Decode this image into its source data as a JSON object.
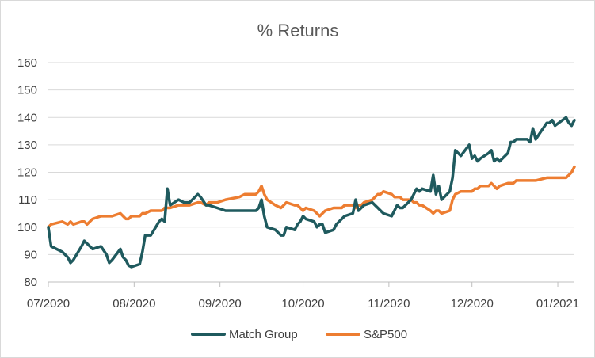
{
  "chart_data": {
    "type": "line",
    "title": "% Returns",
    "xlabel": "",
    "ylabel": "",
    "ylim": [
      80,
      160
    ],
    "yticks": [
      80,
      90,
      100,
      110,
      120,
      130,
      140,
      150,
      160
    ],
    "grid": true,
    "legend": "bottom",
    "colors": {
      "match_group": "#1f5a5e",
      "sp500": "#ed7d31",
      "grid": "#d9d9d9",
      "axis": "#bfbfbf"
    },
    "x_range": [
      "2020-07-01",
      "2021-01-07"
    ],
    "x_ticks": [
      {
        "label": "07/2020",
        "date": "2020-07-01"
      },
      {
        "label": "08/2020",
        "date": "2020-08-01"
      },
      {
        "label": "09/2020",
        "date": "2020-09-01"
      },
      {
        "label": "10/2020",
        "date": "2020-10-01"
      },
      {
        "label": "11/2020",
        "date": "2020-11-01"
      },
      {
        "label": "12/2020",
        "date": "2020-12-01"
      },
      {
        "label": "01/2021",
        "date": "2021-01-01"
      }
    ],
    "series": [
      {
        "name": "Match Group",
        "color": "#1f5a5e",
        "points": [
          [
            "2020-07-01",
            100
          ],
          [
            "2020-07-02",
            93
          ],
          [
            "2020-07-06",
            91
          ],
          [
            "2020-07-08",
            89
          ],
          [
            "2020-07-09",
            87
          ],
          [
            "2020-07-10",
            88
          ],
          [
            "2020-07-13",
            93
          ],
          [
            "2020-07-14",
            95
          ],
          [
            "2020-07-15",
            94
          ],
          [
            "2020-07-17",
            92
          ],
          [
            "2020-07-20",
            93
          ],
          [
            "2020-07-22",
            90
          ],
          [
            "2020-07-23",
            87
          ],
          [
            "2020-07-24",
            88
          ],
          [
            "2020-07-27",
            92
          ],
          [
            "2020-07-28",
            89
          ],
          [
            "2020-07-29",
            88
          ],
          [
            "2020-07-30",
            86
          ],
          [
            "2020-07-31",
            85.5
          ],
          [
            "2020-08-03",
            86.5
          ],
          [
            "2020-08-04",
            91
          ],
          [
            "2020-08-05",
            97
          ],
          [
            "2020-08-07",
            97
          ],
          [
            "2020-08-10",
            102
          ],
          [
            "2020-08-11",
            103
          ],
          [
            "2020-08-12",
            102
          ],
          [
            "2020-08-13",
            114
          ],
          [
            "2020-08-14",
            108
          ],
          [
            "2020-08-17",
            110
          ],
          [
            "2020-08-19",
            109
          ],
          [
            "2020-08-21",
            109
          ],
          [
            "2020-08-24",
            112
          ],
          [
            "2020-08-25",
            111
          ],
          [
            "2020-08-27",
            108
          ],
          [
            "2020-08-28",
            108
          ],
          [
            "2020-08-31",
            107
          ],
          [
            "2020-09-03",
            106
          ],
          [
            "2020-09-08",
            106
          ],
          [
            "2020-09-10",
            106
          ],
          [
            "2020-09-11",
            106
          ],
          [
            "2020-09-14",
            106
          ],
          [
            "2020-09-15",
            107
          ],
          [
            "2020-09-16",
            110
          ],
          [
            "2020-09-17",
            104
          ],
          [
            "2020-09-18",
            100
          ],
          [
            "2020-09-21",
            99
          ],
          [
            "2020-09-23",
            97
          ],
          [
            "2020-09-24",
            97
          ],
          [
            "2020-09-25",
            100
          ],
          [
            "2020-09-28",
            99
          ],
          [
            "2020-09-29",
            101
          ],
          [
            "2020-09-30",
            102
          ],
          [
            "2020-10-01",
            104
          ],
          [
            "2020-10-02",
            103
          ],
          [
            "2020-10-05",
            102
          ],
          [
            "2020-10-06",
            100
          ],
          [
            "2020-10-07",
            101
          ],
          [
            "2020-10-08",
            101
          ],
          [
            "2020-10-09",
            98
          ],
          [
            "2020-10-12",
            99
          ],
          [
            "2020-10-13",
            101
          ],
          [
            "2020-10-15",
            103
          ],
          [
            "2020-10-16",
            104
          ],
          [
            "2020-10-19",
            105
          ],
          [
            "2020-10-20",
            110
          ],
          [
            "2020-10-21",
            106
          ],
          [
            "2020-10-22",
            107
          ],
          [
            "2020-10-23",
            108
          ],
          [
            "2020-10-26",
            109
          ],
          [
            "2020-10-27",
            108
          ],
          [
            "2020-10-28",
            107
          ],
          [
            "2020-10-29",
            106
          ],
          [
            "2020-10-30",
            105
          ],
          [
            "2020-11-02",
            104
          ],
          [
            "2020-11-03",
            106
          ],
          [
            "2020-11-04",
            108
          ],
          [
            "2020-11-05",
            107
          ],
          [
            "2020-11-06",
            107
          ],
          [
            "2020-11-09",
            110
          ],
          [
            "2020-11-10",
            112
          ],
          [
            "2020-11-11",
            114
          ],
          [
            "2020-11-12",
            113
          ],
          [
            "2020-11-13",
            114
          ],
          [
            "2020-11-16",
            113
          ],
          [
            "2020-11-17",
            119
          ],
          [
            "2020-11-18",
            112
          ],
          [
            "2020-11-19",
            115
          ],
          [
            "2020-11-20",
            110
          ],
          [
            "2020-11-23",
            113
          ],
          [
            "2020-11-24",
            118
          ],
          [
            "2020-11-25",
            128
          ],
          [
            "2020-11-27",
            126
          ],
          [
            "2020-11-30",
            130
          ],
          [
            "2020-12-01",
            125
          ],
          [
            "2020-12-02",
            126
          ],
          [
            "2020-12-03",
            124
          ],
          [
            "2020-12-04",
            125
          ],
          [
            "2020-12-07",
            127
          ],
          [
            "2020-12-08",
            128
          ],
          [
            "2020-12-09",
            124
          ],
          [
            "2020-12-10",
            125
          ],
          [
            "2020-12-11",
            124
          ],
          [
            "2020-12-14",
            127
          ],
          [
            "2020-12-15",
            131
          ],
          [
            "2020-12-16",
            131
          ],
          [
            "2020-12-17",
            132
          ],
          [
            "2020-12-18",
            132
          ],
          [
            "2020-12-21",
            132
          ],
          [
            "2020-12-22",
            131
          ],
          [
            "2020-12-23",
            136
          ],
          [
            "2020-12-24",
            132
          ],
          [
            "2020-12-28",
            138
          ],
          [
            "2020-12-29",
            138
          ],
          [
            "2020-12-30",
            139
          ],
          [
            "2020-12-31",
            137
          ],
          [
            "2021-01-04",
            140
          ],
          [
            "2021-01-05",
            138
          ],
          [
            "2021-01-06",
            137
          ],
          [
            "2021-01-07",
            139
          ]
        ]
      },
      {
        "name": "S&P500",
        "color": "#ed7d31",
        "points": [
          [
            "2020-07-01",
            100
          ],
          [
            "2020-07-02",
            101
          ],
          [
            "2020-07-06",
            102
          ],
          [
            "2020-07-08",
            101
          ],
          [
            "2020-07-09",
            102
          ],
          [
            "2020-07-10",
            101
          ],
          [
            "2020-07-13",
            102
          ],
          [
            "2020-07-14",
            102
          ],
          [
            "2020-07-15",
            101
          ],
          [
            "2020-07-17",
            103
          ],
          [
            "2020-07-20",
            104
          ],
          [
            "2020-07-22",
            104
          ],
          [
            "2020-07-23",
            104
          ],
          [
            "2020-07-24",
            104
          ],
          [
            "2020-07-27",
            105
          ],
          [
            "2020-07-28",
            104
          ],
          [
            "2020-07-29",
            103
          ],
          [
            "2020-07-30",
            103
          ],
          [
            "2020-07-31",
            104
          ],
          [
            "2020-08-03",
            104
          ],
          [
            "2020-08-04",
            105
          ],
          [
            "2020-08-05",
            105
          ],
          [
            "2020-08-07",
            106
          ],
          [
            "2020-08-10",
            106
          ],
          [
            "2020-08-11",
            106
          ],
          [
            "2020-08-12",
            107
          ],
          [
            "2020-08-13",
            107
          ],
          [
            "2020-08-14",
            107
          ],
          [
            "2020-08-17",
            108
          ],
          [
            "2020-08-19",
            108
          ],
          [
            "2020-08-21",
            108
          ],
          [
            "2020-08-24",
            109
          ],
          [
            "2020-08-25",
            109
          ],
          [
            "2020-08-27",
            108
          ],
          [
            "2020-08-28",
            109
          ],
          [
            "2020-08-31",
            109
          ],
          [
            "2020-09-03",
            110
          ],
          [
            "2020-09-08",
            111
          ],
          [
            "2020-09-10",
            112
          ],
          [
            "2020-09-11",
            112
          ],
          [
            "2020-09-14",
            112
          ],
          [
            "2020-09-15",
            113
          ],
          [
            "2020-09-16",
            115
          ],
          [
            "2020-09-17",
            112
          ],
          [
            "2020-09-18",
            110
          ],
          [
            "2020-09-21",
            108
          ],
          [
            "2020-09-23",
            107
          ],
          [
            "2020-09-24",
            108
          ],
          [
            "2020-09-25",
            109
          ],
          [
            "2020-09-28",
            108
          ],
          [
            "2020-09-29",
            108
          ],
          [
            "2020-09-30",
            107
          ],
          [
            "2020-10-01",
            106
          ],
          [
            "2020-10-02",
            107
          ],
          [
            "2020-10-05",
            106
          ],
          [
            "2020-10-06",
            105
          ],
          [
            "2020-10-07",
            104
          ],
          [
            "2020-10-08",
            105
          ],
          [
            "2020-10-09",
            106
          ],
          [
            "2020-10-12",
            107
          ],
          [
            "2020-10-13",
            107
          ],
          [
            "2020-10-15",
            107
          ],
          [
            "2020-10-16",
            108
          ],
          [
            "2020-10-19",
            108
          ],
          [
            "2020-10-20",
            107
          ],
          [
            "2020-10-21",
            108
          ],
          [
            "2020-10-22",
            108
          ],
          [
            "2020-10-23",
            109
          ],
          [
            "2020-10-26",
            110
          ],
          [
            "2020-10-27",
            111
          ],
          [
            "2020-10-28",
            112
          ],
          [
            "2020-10-29",
            112
          ],
          [
            "2020-10-30",
            113
          ],
          [
            "2020-11-02",
            112
          ],
          [
            "2020-11-03",
            111
          ],
          [
            "2020-11-04",
            111
          ],
          [
            "2020-11-05",
            111
          ],
          [
            "2020-11-06",
            110
          ],
          [
            "2020-11-09",
            110
          ],
          [
            "2020-11-10",
            109
          ],
          [
            "2020-11-11",
            109
          ],
          [
            "2020-11-12",
            108
          ],
          [
            "2020-11-13",
            108
          ],
          [
            "2020-11-16",
            106
          ],
          [
            "2020-11-17",
            105
          ],
          [
            "2020-11-18",
            106
          ],
          [
            "2020-11-19",
            106
          ],
          [
            "2020-11-20",
            105
          ],
          [
            "2020-11-23",
            106
          ],
          [
            "2020-11-24",
            110
          ],
          [
            "2020-11-25",
            112
          ],
          [
            "2020-11-27",
            113
          ],
          [
            "2020-11-30",
            113
          ],
          [
            "2020-12-01",
            113
          ],
          [
            "2020-12-02",
            114
          ],
          [
            "2020-12-03",
            114
          ],
          [
            "2020-12-04",
            115
          ],
          [
            "2020-12-07",
            115
          ],
          [
            "2020-12-08",
            116
          ],
          [
            "2020-12-09",
            115
          ],
          [
            "2020-12-10",
            114
          ],
          [
            "2020-12-11",
            115
          ],
          [
            "2020-12-14",
            116
          ],
          [
            "2020-12-15",
            116
          ],
          [
            "2020-12-16",
            116
          ],
          [
            "2020-12-17",
            117
          ],
          [
            "2020-12-18",
            117
          ],
          [
            "2020-12-21",
            117
          ],
          [
            "2020-12-22",
            117
          ],
          [
            "2020-12-23",
            117
          ],
          [
            "2020-12-24",
            117
          ],
          [
            "2020-12-28",
            118
          ],
          [
            "2020-12-29",
            118
          ],
          [
            "2020-12-30",
            118
          ],
          [
            "2020-12-31",
            118
          ],
          [
            "2021-01-04",
            118
          ],
          [
            "2021-01-05",
            119
          ],
          [
            "2021-01-06",
            120
          ],
          [
            "2021-01-07",
            122
          ]
        ]
      }
    ]
  }
}
